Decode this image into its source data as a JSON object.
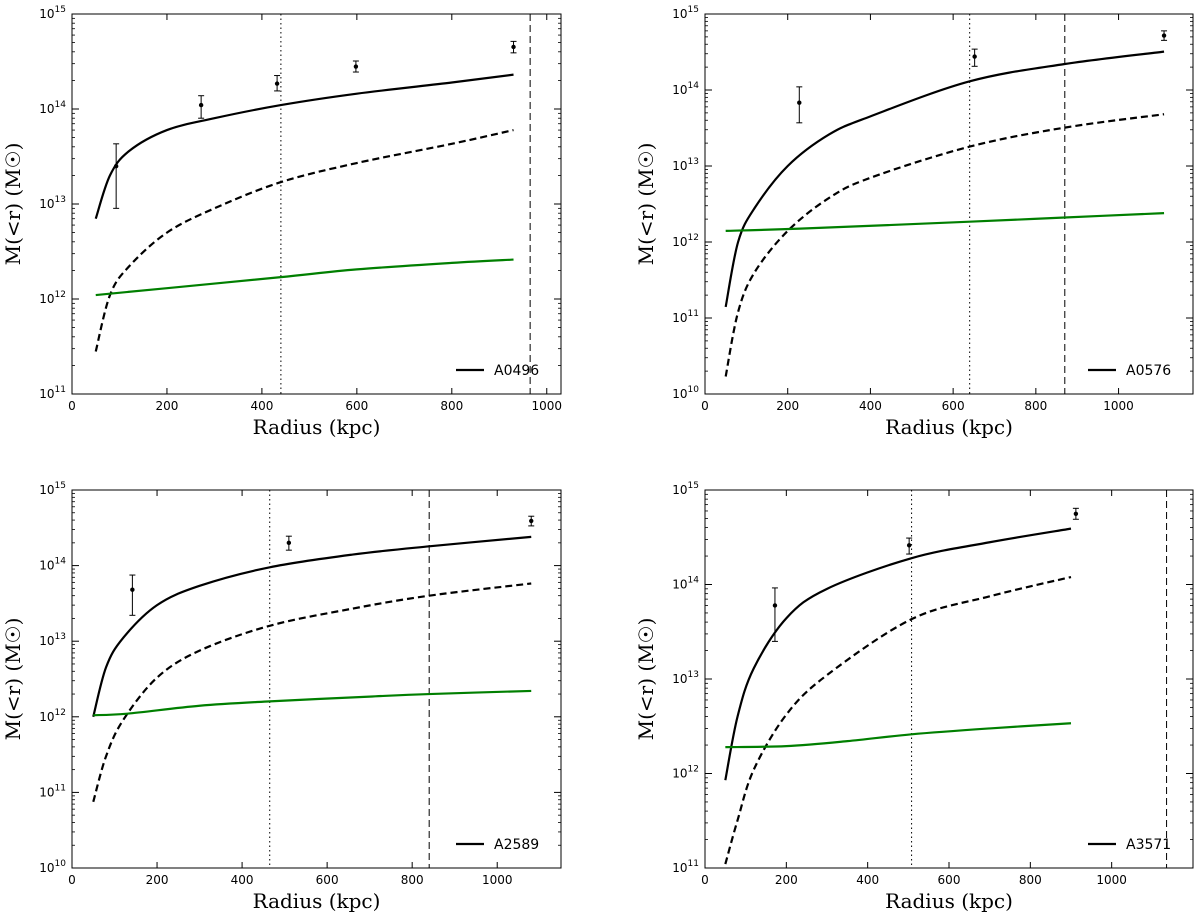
{
  "chart_data": [
    {
      "type": "line",
      "legend": "A0496",
      "legend_position": "lower-right",
      "xlabel": "Radius (kpc)",
      "ylabel": "M(<r) (M☉)",
      "xlim": [
        0,
        1030
      ],
      "ylim": [
        100000000000.0,
        1000000000000000.0
      ],
      "yscale": "log",
      "grid": false,
      "xticks": [
        0,
        200,
        400,
        600,
        800,
        1000
      ],
      "ytick_exponents": [
        11,
        12,
        13,
        14,
        15
      ],
      "vlines": [
        {
          "x": 440,
          "style": "dotted"
        },
        {
          "x": 965,
          "style": "dashed"
        }
      ],
      "series": [
        {
          "style": "solid",
          "color": "#000000",
          "x": [
            50,
            80,
            120,
            200,
            300,
            440,
            600,
            800,
            930
          ],
          "y": [
            7000000000000.0,
            20000000000000.0,
            36000000000000.0,
            60000000000000.0,
            80000000000000.0,
            110000000000000.0,
            145000000000000.0,
            190000000000000.0,
            230000000000000.0
          ]
        },
        {
          "style": "dashed",
          "color": "#000000",
          "x": [
            50,
            80,
            120,
            200,
            300,
            440,
            600,
            800,
            930
          ],
          "y": [
            280000000000.0,
            1100000000000.0,
            2200000000000.0,
            5000000000000.0,
            9000000000000.0,
            17000000000000.0,
            27000000000000.0,
            43000000000000.0,
            60000000000000.0
          ]
        },
        {
          "style": "solid",
          "color": "#007f00",
          "x": [
            50,
            200,
            440,
            600,
            800,
            930
          ],
          "y": [
            1100000000000.0,
            1300000000000.0,
            1700000000000.0,
            2050000000000.0,
            2400000000000.0,
            2600000000000.0
          ]
        }
      ],
      "points": [
        {
          "x": 93,
          "y": 25000000000000.0,
          "lo": 9000000000000.0,
          "hi": 43000000000000.0
        },
        {
          "x": 272,
          "y": 110000000000000.0,
          "lo": 80000000000000.0,
          "hi": 138000000000000.0
        },
        {
          "x": 432,
          "y": 185000000000000.0,
          "lo": 155000000000000.0,
          "hi": 225000000000000.0
        },
        {
          "x": 598,
          "y": 280000000000000.0,
          "lo": 245000000000000.0,
          "hi": 320000000000000.0
        },
        {
          "x": 930,
          "y": 450000000000000.0,
          "lo": 390000000000000.0,
          "hi": 515000000000000.0
        }
      ]
    },
    {
      "type": "line",
      "legend": "A0576",
      "legend_position": "lower-right",
      "xlabel": "Radius (kpc)",
      "ylabel": "M(<r) (M☉)",
      "xlim": [
        0,
        1180
      ],
      "ylim": [
        10000000000.0,
        1000000000000000.0
      ],
      "yscale": "log",
      "grid": false,
      "xticks": [
        0,
        200,
        400,
        600,
        800,
        1000
      ],
      "ytick_exponents": [
        10,
        11,
        12,
        13,
        14,
        15
      ],
      "vlines": [
        {
          "x": 640,
          "style": "dotted"
        },
        {
          "x": 870,
          "style": "dashed"
        }
      ],
      "series": [
        {
          "style": "solid",
          "color": "#000000",
          "x": [
            50,
            80,
            120,
            200,
            300,
            400,
            640,
            870,
            1110
          ],
          "y": [
            140000000000.0,
            1000000000000.0,
            2800000000000.0,
            10000000000000.0,
            26000000000000.0,
            45000000000000.0,
            130000000000000.0,
            220000000000000.0,
            320000000000000.0
          ]
        },
        {
          "style": "dashed",
          "color": "#000000",
          "x": [
            50,
            80,
            120,
            200,
            300,
            400,
            640,
            870,
            1110
          ],
          "y": [
            17000000000.0,
            120000000000.0,
            400000000000.0,
            1400000000000.0,
            3800000000000.0,
            7000000000000.0,
            18000000000000.0,
            32000000000000.0,
            48000000000000.0
          ]
        },
        {
          "style": "solid",
          "color": "#007f00",
          "x": [
            50,
            230,
            640,
            870,
            1110
          ],
          "y": [
            1400000000000.0,
            1500000000000.0,
            1850000000000.0,
            2100000000000.0,
            2400000000000.0
          ]
        }
      ],
      "points": [
        {
          "x": 228,
          "y": 68000000000000.0,
          "lo": 37000000000000.0,
          "hi": 110000000000000.0
        },
        {
          "x": 652,
          "y": 275000000000000.0,
          "lo": 205000000000000.0,
          "hi": 345000000000000.0
        },
        {
          "x": 1110,
          "y": 520000000000000.0,
          "lo": 450000000000000.0,
          "hi": 600000000000000.0
        }
      ]
    },
    {
      "type": "line",
      "legend": "A2589",
      "legend_position": "lower-right",
      "xlabel": "Radius (kpc)",
      "ylabel": "M(<r) (M☉)",
      "xlim": [
        0,
        1150
      ],
      "ylim": [
        10000000000.0,
        1000000000000000.0
      ],
      "yscale": "log",
      "grid": false,
      "xticks": [
        0,
        200,
        400,
        600,
        800,
        1000
      ],
      "ytick_exponents": [
        10,
        11,
        12,
        13,
        14,
        15
      ],
      "vlines": [
        {
          "x": 465,
          "style": "dotted"
        },
        {
          "x": 840,
          "style": "dashed"
        }
      ],
      "series": [
        {
          "style": "solid",
          "color": "#000000",
          "x": [
            50,
            80,
            120,
            200,
            300,
            465,
            660,
            840,
            1080
          ],
          "y": [
            1000000000000.0,
            4500000000000.0,
            11000000000000.0,
            30000000000000.0,
            54000000000000.0,
            95000000000000.0,
            140000000000000.0,
            180000000000000.0,
            240000000000000.0
          ]
        },
        {
          "style": "dashed",
          "color": "#000000",
          "x": [
            50,
            80,
            120,
            200,
            300,
            465,
            660,
            840,
            1080
          ],
          "y": [
            75000000000.0,
            300000000000.0,
            900000000000.0,
            3300000000000.0,
            7500000000000.0,
            16000000000000.0,
            27000000000000.0,
            40000000000000.0,
            58000000000000.0
          ]
        },
        {
          "style": "solid",
          "color": "#007f00",
          "x": [
            50,
            130,
            300,
            465,
            700,
            840,
            1080
          ],
          "y": [
            1050000000000.0,
            1100000000000.0,
            1400000000000.0,
            1600000000000.0,
            1850000000000.0,
            2000000000000.0,
            2200000000000.0
          ]
        }
      ],
      "points": [
        {
          "x": 142,
          "y": 48000000000000.0,
          "lo": 22000000000000.0,
          "hi": 75000000000000.0
        },
        {
          "x": 510,
          "y": 200000000000000.0,
          "lo": 160000000000000.0,
          "hi": 245000000000000.0
        },
        {
          "x": 1080,
          "y": 390000000000000.0,
          "lo": 335000000000000.0,
          "hi": 450000000000000.0
        }
      ]
    },
    {
      "type": "line",
      "legend": "A3571",
      "legend_position": "lower-right",
      "xlabel": "Radius (kpc)",
      "ylabel": "M(<r) (M☉)",
      "xlim": [
        0,
        1200
      ],
      "ylim": [
        100000000000.0,
        1000000000000000.0
      ],
      "yscale": "log",
      "grid": false,
      "xticks": [
        0,
        200,
        400,
        600,
        800,
        1000
      ],
      "ytick_exponents": [
        11,
        12,
        13,
        14,
        15
      ],
      "vlines": [
        {
          "x": 508,
          "style": "dotted"
        },
        {
          "x": 1135,
          "style": "dashed"
        }
      ],
      "series": [
        {
          "style": "solid",
          "color": "#000000",
          "x": [
            50,
            80,
            120,
            200,
            300,
            508,
            700,
            900
          ],
          "y": [
            850000000000.0,
            4000000000000.0,
            13000000000000.0,
            44000000000000.0,
            90000000000000.0,
            190000000000000.0,
            280000000000000.0,
            390000000000000.0
          ]
        },
        {
          "style": "dashed",
          "color": "#000000",
          "x": [
            50,
            80,
            120,
            200,
            300,
            508,
            700,
            900
          ],
          "y": [
            110000000000.0,
            320000000000.0,
            1100000000000.0,
            4200000000000.0,
            11000000000000.0,
            43000000000000.0,
            75000000000000.0,
            120000000000000.0
          ]
        },
        {
          "style": "solid",
          "color": "#007f00",
          "x": [
            50,
            200,
            350,
            508,
            700,
            900
          ],
          "y": [
            1900000000000.0,
            1950000000000.0,
            2200000000000.0,
            2600000000000.0,
            3000000000000.0,
            3400000000000.0
          ]
        }
      ],
      "points": [
        {
          "x": 172,
          "y": 60000000000000.0,
          "lo": 25000000000000.0,
          "hi": 92000000000000.0
        },
        {
          "x": 502,
          "y": 260000000000000.0,
          "lo": 210000000000000.0,
          "hi": 310000000000000.0
        },
        {
          "x": 912,
          "y": 560000000000000.0,
          "lo": 490000000000000.0,
          "hi": 640000000000000.0
        }
      ]
    }
  ]
}
